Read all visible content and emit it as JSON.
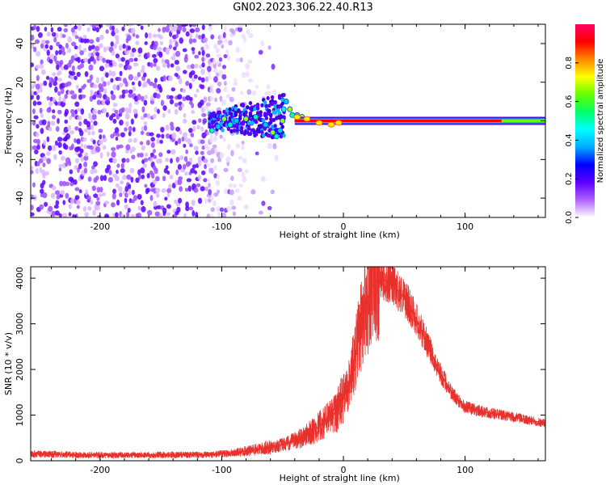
{
  "title": "GN02.2023.306.22.40.R13",
  "chart_data": [
    {
      "type": "heatmap",
      "xlabel": "Height of straight line (km)",
      "ylabel": "Frequency (Hz)",
      "xlim": [
        -257,
        166
      ],
      "ylim": [
        -50,
        50
      ],
      "xticks": [
        -200,
        -100,
        0,
        100
      ],
      "yticks": [
        -40,
        -20,
        0,
        20,
        40
      ],
      "grid": false,
      "colorbar": {
        "label": "Normalized spectral amplitude",
        "range": [
          0,
          1
        ],
        "ticks": [
          "0.0",
          "0.2",
          "0.4",
          "0.6",
          "0.8"
        ],
        "colors": [
          "#ffffff",
          "#b060ff",
          "#5a00ff",
          "#0000ff",
          "#00aaff",
          "#00ffff",
          "#00ff66",
          "#66ff00",
          "#ffff00",
          "#ff8800",
          "#ff0000",
          "#ff0066"
        ]
      },
      "features": {
        "noise_region_x": [
          -257,
          -55
        ],
        "strong_noise_x": [
          -257,
          -115
        ],
        "burst_x": [
          -110,
          -48
        ],
        "burst_freq_range": [
          -12,
          14
        ],
        "carrier_x": [
          -40,
          166
        ],
        "carrier_freq": 0,
        "carrier_peak_amplitude": 0.95
      }
    },
    {
      "type": "line",
      "xlabel": "Height of straight line (km)",
      "ylabel": "SNR (10 * v/v)",
      "xlim": [
        -257,
        166
      ],
      "ylim": [
        0,
        4250
      ],
      "xticks": [
        -200,
        -100,
        0,
        100
      ],
      "yticks": [
        0,
        1000,
        2000,
        3000,
        4000
      ],
      "grid": false,
      "series": [
        {
          "color": "#e8302c",
          "x": [
            -257,
            -220,
            -180,
            -140,
            -110,
            -90,
            -70,
            -55,
            -45,
            -35,
            -25,
            -15,
            -5,
            5,
            12,
            18,
            24,
            30,
            35,
            40,
            46,
            52,
            60,
            70,
            80,
            90,
            100,
            110,
            120,
            140,
            166
          ],
          "values": [
            150,
            130,
            120,
            130,
            130,
            170,
            250,
            320,
            380,
            500,
            650,
            850,
            1100,
            1700,
            2600,
            3400,
            3850,
            4000,
            3950,
            3850,
            3700,
            3500,
            3100,
            2500,
            1900,
            1450,
            1180,
            1100,
            1050,
            950,
            820
          ]
        }
      ]
    }
  ]
}
